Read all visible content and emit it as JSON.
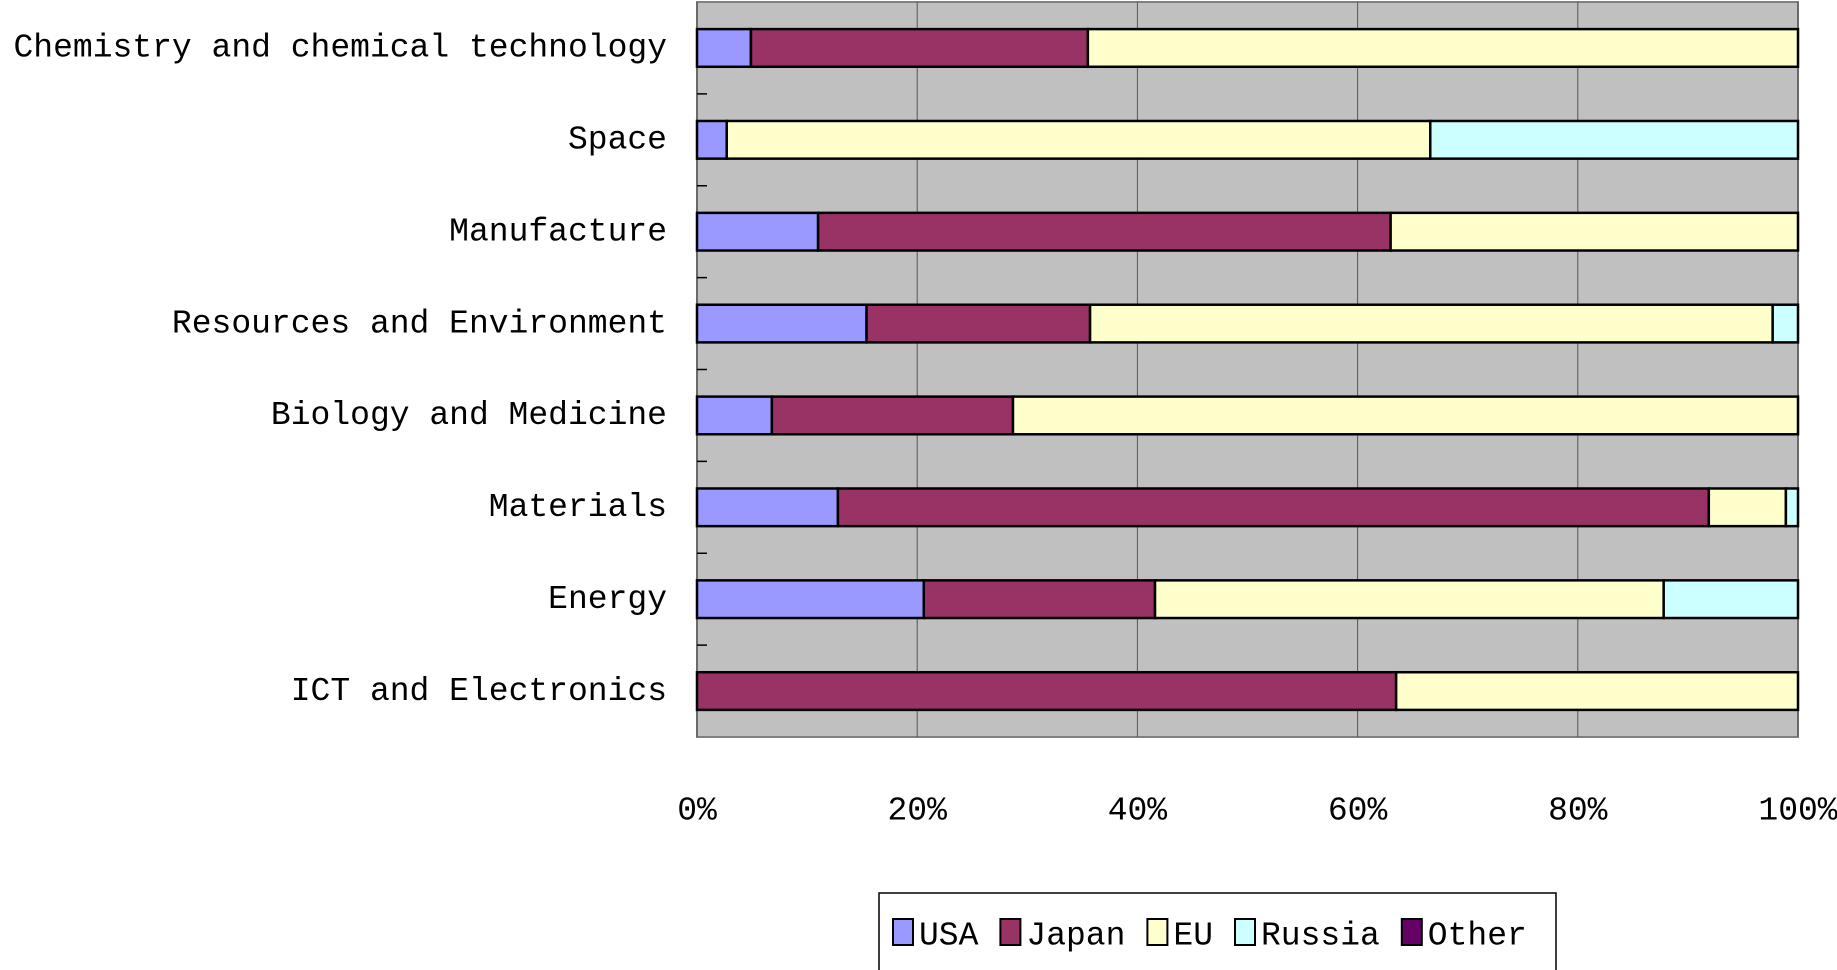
{
  "chart_data": {
    "type": "stacked_bar_horizontal",
    "categories": [
      "Chemistry and chemical technology",
      "Space",
      "Manufacture",
      "Resources and Environment",
      "Biology and Medicine",
      "Materials",
      "Energy",
      "ICT and Electronics"
    ],
    "series": [
      {
        "name": "USA",
        "color": "#9999ff",
        "values": [
          4.9,
          2.7,
          11.0,
          15.4,
          6.8,
          12.8,
          20.6,
          0
        ]
      },
      {
        "name": "Japan",
        "color": "#993366",
        "values": [
          30.6,
          0,
          52.0,
          20.3,
          21.9,
          79.1,
          21.0,
          63.5
        ]
      },
      {
        "name": "EU",
        "color": "#ffffcc",
        "values": [
          64.5,
          63.9,
          37.0,
          62.0,
          71.3,
          7.0,
          46.2,
          36.5
        ]
      },
      {
        "name": "Russia",
        "color": "#ccffff",
        "values": [
          0,
          33.4,
          0,
          2.3,
          0,
          1.1,
          12.2,
          0
        ]
      },
      {
        "name": "Other",
        "color": "#660066",
        "values": [
          0,
          0,
          0,
          0,
          0,
          0,
          0,
          0
        ]
      }
    ],
    "xlim": [
      0,
      100
    ],
    "xticks": [
      {
        "value": 0,
        "label": "0%"
      },
      {
        "value": 20,
        "label": "20%"
      },
      {
        "value": 40,
        "label": "40%"
      },
      {
        "value": 60,
        "label": "60%"
      },
      {
        "value": 80,
        "label": "80%"
      },
      {
        "value": 100,
        "label": "100%"
      }
    ],
    "grid": true,
    "legend": "bottom"
  }
}
